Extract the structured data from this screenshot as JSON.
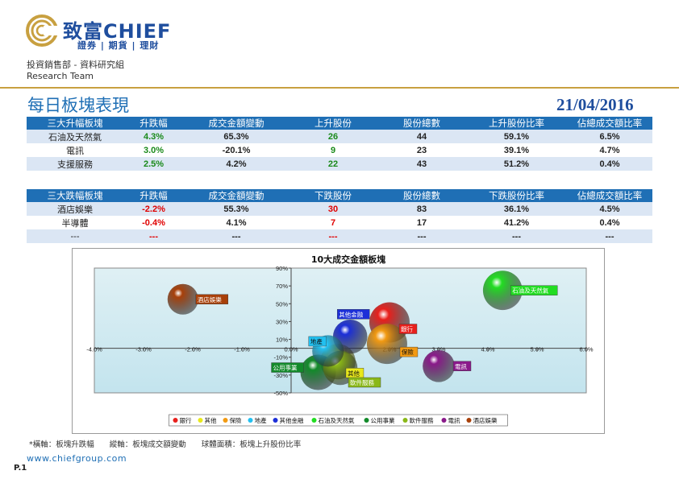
{
  "header": {
    "brand_main": "致富CHIEF",
    "brand_sub": "證券 | 期貨 | 理財",
    "department": "投資銷售部 - 資料研究組",
    "team": "Research Team",
    "title": "每日板塊表現",
    "date": "21/04/2016"
  },
  "table_up": {
    "headers": [
      "三大升幅板塊",
      "升跌幅",
      "成交金額變動",
      "上升股份",
      "股份總數",
      "上升股份比率",
      "佔總成交額比率"
    ],
    "rows": [
      [
        "石油及天然氣",
        "4.3%",
        "65.3%",
        "26",
        "44",
        "59.1%",
        "6.5%"
      ],
      [
        "電訊",
        "3.0%",
        "-20.1%",
        "9",
        "23",
        "39.1%",
        "4.7%"
      ],
      [
        "支援服務",
        "2.5%",
        "4.2%",
        "22",
        "43",
        "51.2%",
        "0.4%"
      ]
    ]
  },
  "table_down": {
    "headers": [
      "三大跌幅板塊",
      "升跌幅",
      "成交金額變動",
      "下跌股份",
      "股份總數",
      "下跌股份比率",
      "佔總成交額比率"
    ],
    "rows": [
      [
        "酒店娛樂",
        "-2.2%",
        "55.3%",
        "30",
        "83",
        "36.1%",
        "4.5%"
      ],
      [
        "半導體",
        "-0.4%",
        "4.1%",
        "7",
        "17",
        "41.2%",
        "0.4%"
      ],
      [
        "---",
        "---",
        "---",
        "---",
        "---",
        "---",
        "---"
      ]
    ]
  },
  "colors": {
    "header_bg": "#1f6fb5",
    "row_alt": "#dbe6f4",
    "up": "#1a8a1a",
    "down": "#e00000",
    "gold": "#c8a040"
  },
  "chart_data": {
    "type": "bubble",
    "title": "10大成交金額板塊",
    "xlim": [
      -4.0,
      6.0
    ],
    "ylim": [
      -50,
      90
    ],
    "x_ticks": [
      "-4.0%",
      "-3.0%",
      "-2.0%",
      "-1.0%",
      "0.0%",
      "1.0%",
      "2.0%",
      "3.0%",
      "4.0%",
      "5.0%",
      "6.0%"
    ],
    "y_ticks": [
      "90%",
      "70%",
      "50%",
      "30%",
      "10%",
      "-10%",
      "-30%",
      "-50%"
    ],
    "x_tick_values": [
      -4,
      -3,
      -2,
      -1,
      0,
      1,
      2,
      3,
      4,
      5,
      6
    ],
    "y_tick_values": [
      90,
      70,
      50,
      30,
      10,
      -10,
      -30,
      -50
    ],
    "series": [
      {
        "name": "銀行",
        "x": 2.0,
        "y": 29,
        "size": 0.62,
        "color": "#e8201c"
      },
      {
        "name": "其他",
        "x": 0.95,
        "y": -15,
        "size": 0.48,
        "color": "#e8e81c"
      },
      {
        "name": "保險",
        "x": 1.95,
        "y": 5,
        "size": 0.62,
        "color": "#f29a12"
      },
      {
        "name": "地產",
        "x": 0.75,
        "y": -3,
        "size": 0.38,
        "color": "#22c0f0"
      },
      {
        "name": "其他金融",
        "x": 1.2,
        "y": 13,
        "size": 0.45,
        "color": "#1c2fd8"
      },
      {
        "name": "石油及天然氣",
        "x": 4.3,
        "y": 65,
        "size": 0.59,
        "color": "#22dd22"
      },
      {
        "name": "公用事業",
        "x": 0.55,
        "y": -27,
        "size": 0.48,
        "color": "#128a2a"
      },
      {
        "name": "軟件服務",
        "x": 1.0,
        "y": -22,
        "size": 0.45,
        "color": "#8ab818"
      },
      {
        "name": "電訊",
        "x": 3.0,
        "y": -20,
        "size": 0.39,
        "color": "#8a1a8a"
      },
      {
        "name": "酒店娛樂",
        "x": -2.2,
        "y": 55,
        "size": 0.36,
        "color": "#a8400a"
      }
    ],
    "legend": [
      "銀行",
      "其他",
      "保險",
      "地產",
      "其他金融",
      "石油及天然氣",
      "公用事業",
      "軟件服務",
      "電訊",
      "酒店娛樂"
    ],
    "legend_position": "bottom"
  },
  "footnote": "*橫軸：板塊升跌幅　　縱軸：板塊成交額變動　　球體面積：板塊上升股份比率",
  "website": "www.chiefgroup.com",
  "page_label": "P.1"
}
